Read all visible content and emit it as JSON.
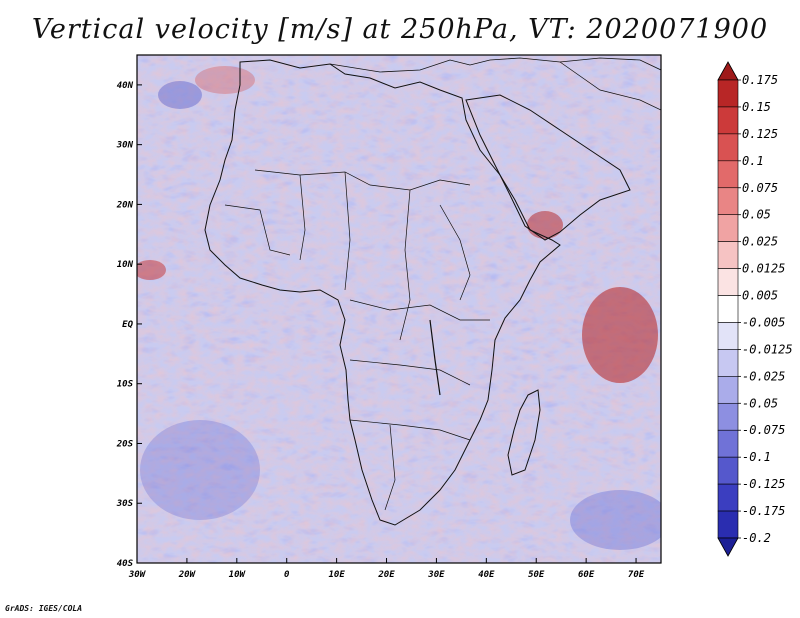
{
  "title": "Vertical velocity [m/s] at 250hPa, VT: 2020071900",
  "credit": "GrADS: IGES/COLA",
  "map": {
    "lon_range": [
      -30,
      75
    ],
    "lat_range": [
      -40,
      45
    ],
    "lon_ticks": [
      {
        "value": -30,
        "label": "30W"
      },
      {
        "value": -20,
        "label": "20W"
      },
      {
        "value": -10,
        "label": "10W"
      },
      {
        "value": 0,
        "label": "0"
      },
      {
        "value": 10,
        "label": "10E"
      },
      {
        "value": 20,
        "label": "20E"
      },
      {
        "value": 30,
        "label": "30E"
      },
      {
        "value": 40,
        "label": "40E"
      },
      {
        "value": 50,
        "label": "50E"
      },
      {
        "value": 60,
        "label": "60E"
      },
      {
        "value": 70,
        "label": "70E"
      }
    ],
    "lat_ticks": [
      {
        "value": 40,
        "label": "40N"
      },
      {
        "value": 30,
        "label": "30N"
      },
      {
        "value": 20,
        "label": "20N"
      },
      {
        "value": 10,
        "label": "10N"
      },
      {
        "value": 0,
        "label": "EQ"
      },
      {
        "value": -10,
        "label": "10S"
      },
      {
        "value": -20,
        "label": "20S"
      },
      {
        "value": -30,
        "label": "30S"
      },
      {
        "value": -40,
        "label": "40S"
      }
    ]
  },
  "colorbar": {
    "labels": [
      "0.175",
      "0.15",
      "0.125",
      "0.1",
      "0.075",
      "0.05",
      "0.025",
      "0.0125",
      "0.005",
      "-0.005",
      "-0.0125",
      "-0.025",
      "-0.05",
      "-0.075",
      "-0.1",
      "-0.125",
      "-0.175",
      "-0.2"
    ],
    "colors": [
      "#9e1a1a",
      "#b82626",
      "#cc3a3a",
      "#d95252",
      "#e26a6a",
      "#e98585",
      "#f0a3a3",
      "#f6c3c3",
      "#fbe3e3",
      "#ffffff",
      "#e2e3f8",
      "#c7c8f2",
      "#aaacea",
      "#8d8fe1",
      "#7072d7",
      "#5558cc",
      "#3b3ec0",
      "#2a2db0",
      "#1c1f96"
    ]
  }
}
